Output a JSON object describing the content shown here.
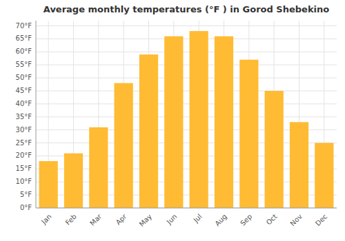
{
  "chart_data": {
    "type": "bar",
    "title": "Average monthly temperatures (°F ) in Gorod Shebekino",
    "categories": [
      "Jan",
      "Feb",
      "Mar",
      "Apr",
      "May",
      "Jun",
      "Jul",
      "Aug",
      "Sep",
      "Oct",
      "Nov",
      "Dec"
    ],
    "values": [
      18,
      21,
      31,
      48,
      59,
      66,
      68,
      66,
      57,
      45,
      33,
      25
    ],
    "color": "#FFBB33",
    "ylim": [
      0,
      72
    ],
    "yticks": [
      {
        "value": 0,
        "label": "0°F"
      },
      {
        "value": 5,
        "label": "5°F"
      },
      {
        "value": 10,
        "label": "10°F"
      },
      {
        "value": 15,
        "label": "15°F"
      },
      {
        "value": 20,
        "label": "20°F"
      },
      {
        "value": 25,
        "label": "25°F"
      },
      {
        "value": 30,
        "label": "30°F"
      },
      {
        "value": 35,
        "label": "35°F"
      },
      {
        "value": 40,
        "label": "40°F"
      },
      {
        "value": 45,
        "label": "45°F"
      },
      {
        "value": 50,
        "label": "50°F"
      },
      {
        "value": 55,
        "label": "55°F"
      },
      {
        "value": 60,
        "label": "60°F"
      },
      {
        "value": 65,
        "label": "65°F"
      },
      {
        "value": 70,
        "label": "70°F"
      }
    ],
    "grid": true
  }
}
